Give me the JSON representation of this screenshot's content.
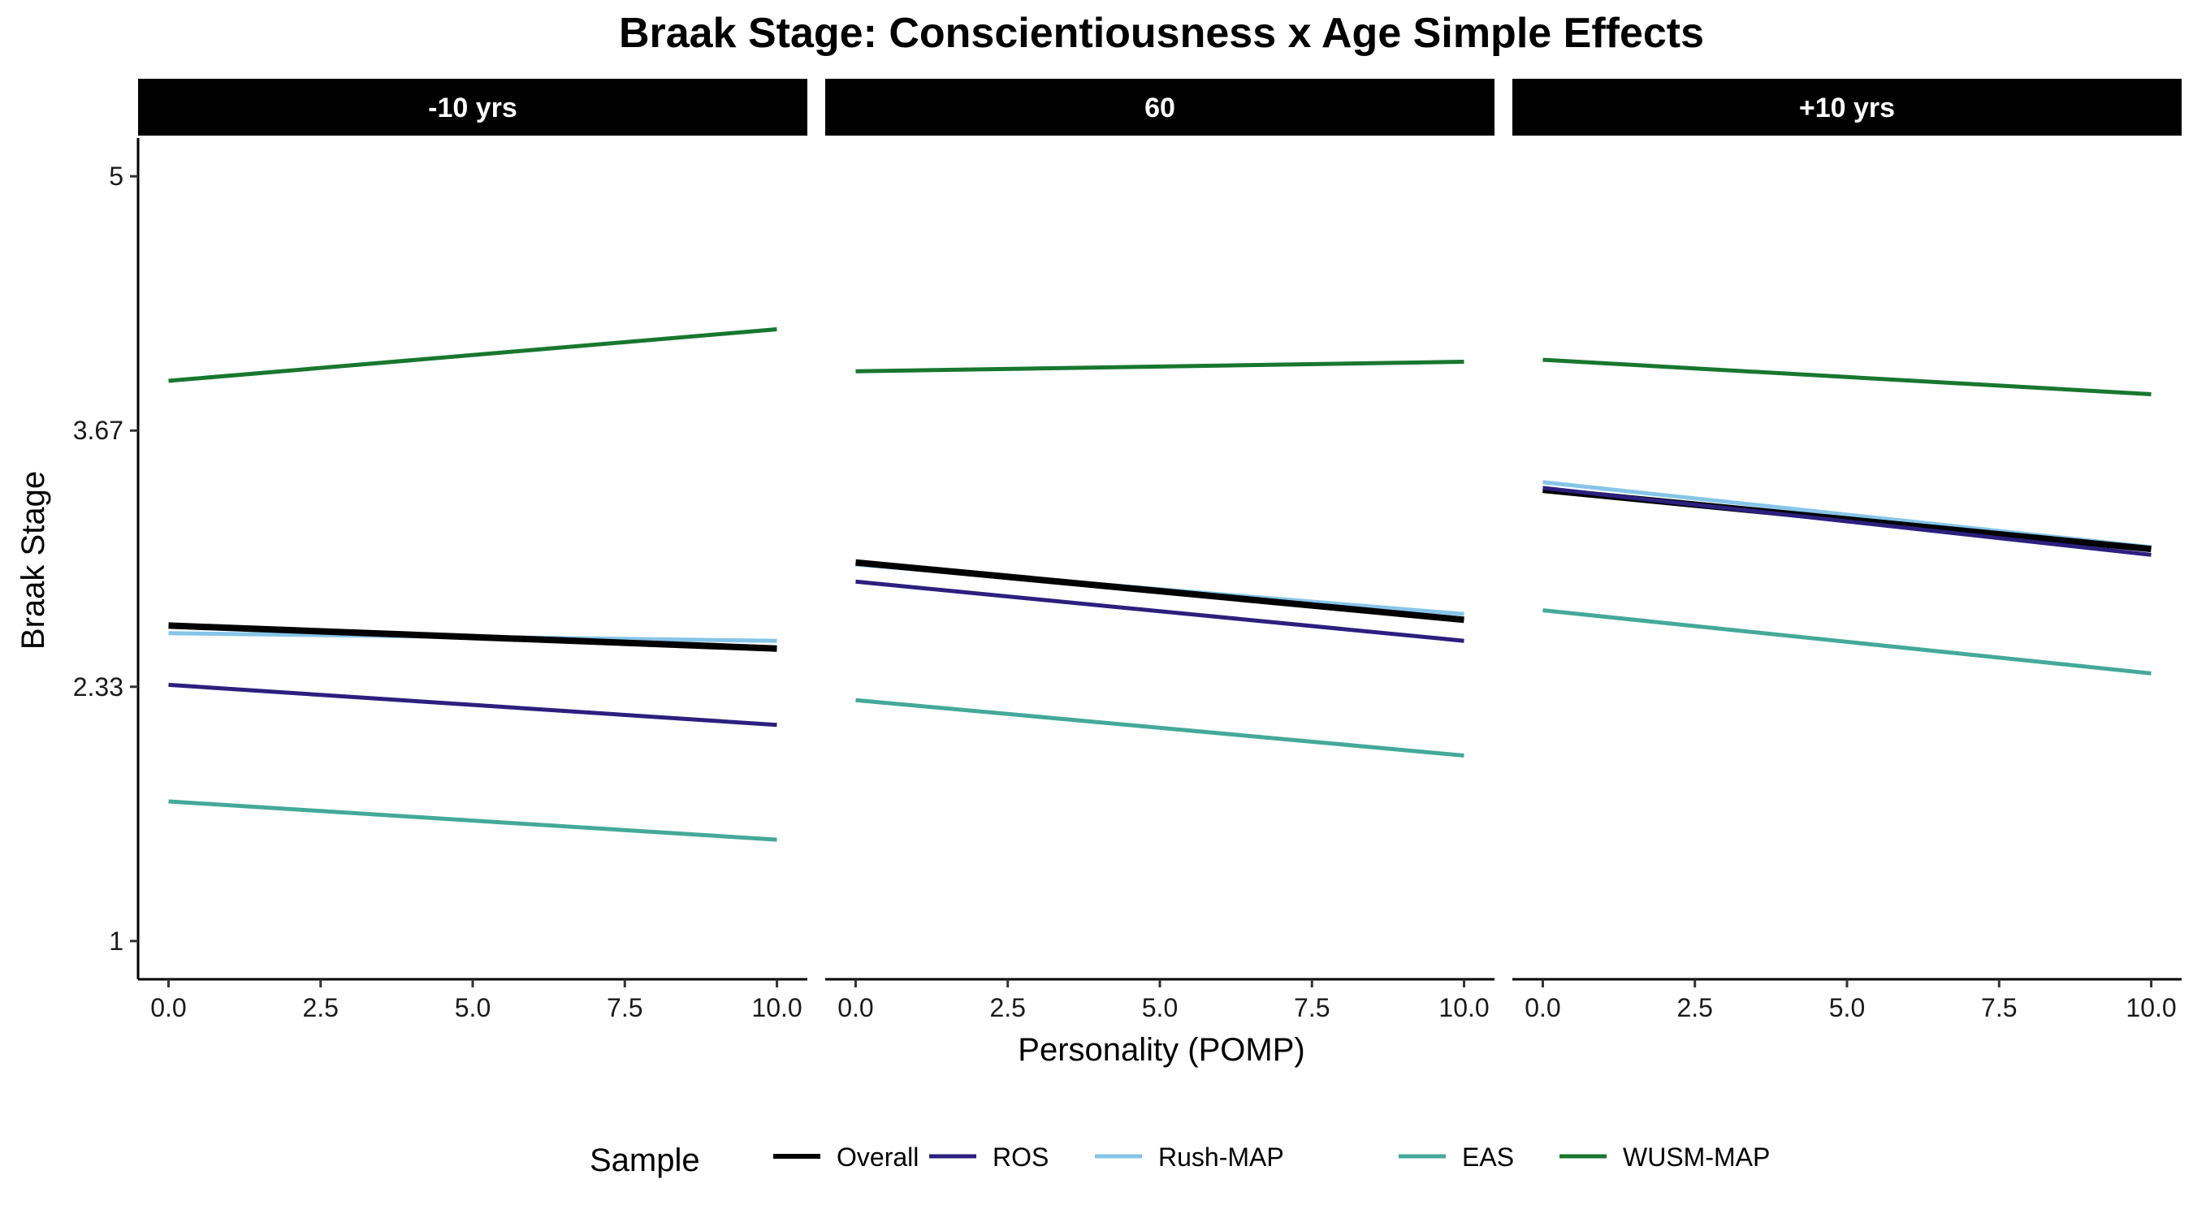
{
  "chart_data": {
    "type": "line",
    "title": "Braak Stage: Conscientiousness x Age Simple Effects",
    "xlabel": "Personality (POMP)",
    "ylabel": "Braak Stage",
    "xlim": [
      -0.5,
      10.5
    ],
    "ylim": [
      0.8,
      5.2
    ],
    "x_ticks": [
      0,
      2.5,
      5,
      7.5,
      10
    ],
    "x_tick_labels": [
      "0.0",
      "2.5",
      "5.0",
      "7.5",
      "10.0"
    ],
    "y_ticks": [
      1,
      2.33,
      3.67,
      5
    ],
    "y_tick_labels": [
      "1",
      "2.33",
      "3.67",
      "5"
    ],
    "grid": false,
    "legend": {
      "title": "Sample",
      "position": "bottom"
    },
    "series_styles": [
      {
        "name": "Overall",
        "color": "#000000"
      },
      {
        "name": "ROS",
        "color": "#2c1f7e"
      },
      {
        "name": "Rush-MAP",
        "color": "#86c5e9"
      },
      {
        "name": "EAS",
        "color": "#44a99a"
      },
      {
        "name": "WUSM-MAP",
        "color": "#18772f"
      }
    ],
    "panels": [
      {
        "label": "-10 yrs",
        "series": [
          {
            "name": "WUSM-MAP",
            "x": [
              0,
              10
            ],
            "y": [
              3.93,
              4.2
            ]
          },
          {
            "name": "Rush-MAP",
            "x": [
              0,
              10
            ],
            "y": [
              2.61,
              2.57
            ]
          },
          {
            "name": "Overall",
            "x": [
              0,
              10
            ],
            "y": [
              2.65,
              2.53
            ]
          },
          {
            "name": "ROS",
            "x": [
              0,
              10
            ],
            "y": [
              2.34,
              2.13
            ]
          },
          {
            "name": "EAS",
            "x": [
              0,
              10
            ],
            "y": [
              1.73,
              1.53
            ]
          }
        ]
      },
      {
        "label": "60",
        "series": [
          {
            "name": "WUSM-MAP",
            "x": [
              0,
              10
            ],
            "y": [
              3.98,
              4.03
            ]
          },
          {
            "name": "Rush-MAP",
            "x": [
              0,
              10
            ],
            "y": [
              2.97,
              2.71
            ]
          },
          {
            "name": "Overall",
            "x": [
              0,
              10
            ],
            "y": [
              2.98,
              2.68
            ]
          },
          {
            "name": "ROS",
            "x": [
              0,
              10
            ],
            "y": [
              2.88,
              2.57
            ]
          },
          {
            "name": "EAS",
            "x": [
              0,
              10
            ],
            "y": [
              2.26,
              1.97
            ]
          }
        ]
      },
      {
        "label": "+10 yrs",
        "series": [
          {
            "name": "WUSM-MAP",
            "x": [
              0,
              10
            ],
            "y": [
              4.04,
              3.86
            ]
          },
          {
            "name": "Rush-MAP",
            "x": [
              0,
              10
            ],
            "y": [
              3.4,
              3.06
            ]
          },
          {
            "name": "Overall",
            "x": [
              0,
              10
            ],
            "y": [
              3.36,
              3.05
            ]
          },
          {
            "name": "ROS",
            "x": [
              0,
              10
            ],
            "y": [
              3.37,
              3.02
            ]
          },
          {
            "name": "EAS",
            "x": [
              0,
              10
            ],
            "y": [
              2.73,
              2.4
            ]
          }
        ]
      }
    ]
  }
}
